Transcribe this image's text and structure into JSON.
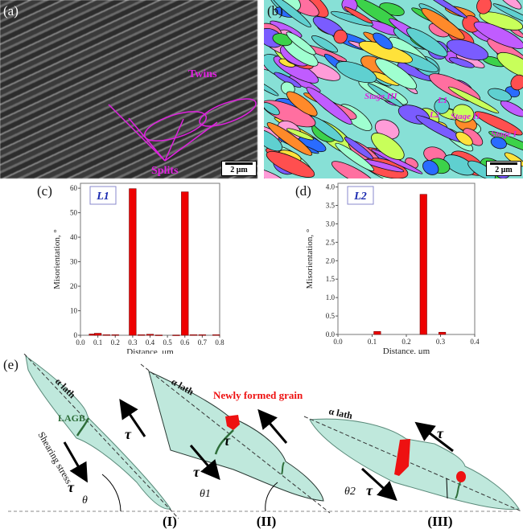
{
  "panel_a": {
    "label": "(a)",
    "twins": "Twins",
    "splits": "Splits",
    "scale": "2 μm"
  },
  "panel_b": {
    "label": "(b)",
    "stage_iii": "Stage III",
    "l1": "L1",
    "l2": "L2",
    "stage_ii": "Stage II",
    "stage_i": "Stage I",
    "scale": "2 μm"
  },
  "chart_data": [
    {
      "type": "bar",
      "panel": "(c)",
      "legend": "L1",
      "xlabel": "Distance, μm",
      "ylabel": "Misorientation, °",
      "xlim": [
        0,
        0.8
      ],
      "ylim": [
        0,
        62
      ],
      "xticks": [
        "0.0",
        "0.1",
        "0.2",
        "0.3",
        "0.4",
        "0.5",
        "0.6",
        "0.7",
        "0.8"
      ],
      "yticks": [
        "0",
        "10",
        "20",
        "30",
        "40",
        "50",
        "60"
      ],
      "x": [
        0.07,
        0.1,
        0.15,
        0.2,
        0.3,
        0.35,
        0.4,
        0.45,
        0.55,
        0.6,
        0.65,
        0.7,
        0.78
      ],
      "values": [
        0.5,
        0.8,
        0.2,
        0.2,
        59.8,
        0.2,
        0.4,
        0.1,
        0.1,
        58.5,
        0.2,
        0.2,
        0.2
      ],
      "bar_color": "#ee0000"
    },
    {
      "type": "bar",
      "panel": "(d)",
      "legend": "L2",
      "xlabel": "Distance, μm",
      "ylabel": "Misorientation, °",
      "xlim": [
        0,
        0.4
      ],
      "ylim": [
        0,
        4.1
      ],
      "xticks": [
        "0.0",
        "0.1",
        "0.2",
        "0.3",
        "0.4"
      ],
      "yticks": [
        "0.0",
        "0.5",
        "1.0",
        "1.5",
        "2.0",
        "2.5",
        "3.0",
        "3.5",
        "4.0"
      ],
      "x": [
        0.115,
        0.25,
        0.305
      ],
      "values": [
        0.08,
        3.8,
        0.06
      ],
      "bar_color": "#ee0000"
    }
  ],
  "panel_e": {
    "label": "(e)",
    "alpha_lath": "α lath",
    "lagb": "LAGB",
    "shearing": "Shearing stress",
    "tau": "τ",
    "new_grain": "Newly formed grain",
    "theta": "θ",
    "theta1": "θ1",
    "theta2": "θ2",
    "stages": [
      "(I)",
      "(II)",
      "(III)"
    ]
  }
}
